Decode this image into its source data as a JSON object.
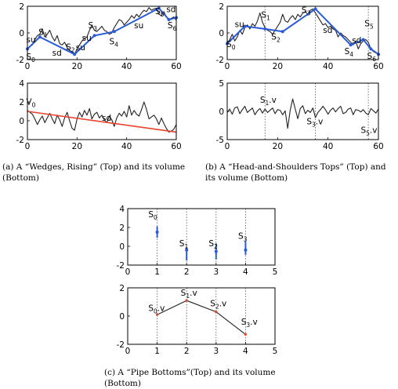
{
  "captions": {
    "a": "(a) A “Wedges, Rising” (Top) and its volume (Bottom)",
    "b": "(b) A “Head-and-Shoulders Tops” (Top) and its volume (Bottom)",
    "c": "(c) A “Pipe Bottoms”(Top) and its volume (Bottom)"
  },
  "colors": {
    "price": "#222222",
    "segment": "#2a5bd7",
    "trend": "#e8442a",
    "axis": "#000000"
  },
  "chart_data": [
    {
      "id": "a-top",
      "type": "line",
      "title": "",
      "xlabel": "",
      "ylabel": "",
      "xlim": [
        0,
        60
      ],
      "ylim": [
        -2,
        2
      ],
      "xticks": [
        0,
        20,
        40,
        60
      ],
      "yticks": [
        -2,
        0,
        2
      ],
      "series": [
        {
          "role": "price",
          "y": [
            -1.2,
            -1.0,
            -0.9,
            -0.5,
            -0.2,
            -0.1,
            0.3,
            -0.3,
            -0.1,
            0.2,
            -0.3,
            -0.6,
            -0.2,
            -0.8,
            -0.9,
            -0.7,
            -1.1,
            -1.3,
            -1.4,
            -1.6,
            -1.2,
            -0.9,
            -0.6,
            -0.4,
            -0.3,
            0.2,
            0.6,
            0.2,
            0.1,
            0.3,
            0.5,
            0.2,
            0.1,
            -0.1,
            0.0,
            0.4,
            0.7,
            1.0,
            0.9,
            0.6,
            0.8,
            1.0,
            1.3,
            1.1,
            1.4,
            1.2,
            1.5,
            1.7,
            1.6,
            1.9,
            1.7,
            1.8,
            1.85,
            1.4,
            1.3,
            1.6,
            1.2,
            1.0,
            1.1,
            1.2,
            0.95
          ]
        },
        {
          "role": "segment",
          "x": [
            0,
            5,
            19,
            27,
            35,
            53,
            57,
            60
          ],
          "y": [
            -1.2,
            -0.3,
            -1.6,
            -0.2,
            0.1,
            1.85,
            1.0,
            1.15
          ]
        }
      ],
      "annotations": [
        {
          "text": "su",
          "x": -0.5,
          "y": -0.7
        },
        {
          "text": "S",
          "sub": "1",
          "x": 4.5,
          "y": -0.15
        },
        {
          "text": "S",
          "sub": "0",
          "x": -0.5,
          "y": -2.0
        },
        {
          "text": "sd",
          "x": 10,
          "y": -1.7
        },
        {
          "text": "S",
          "sub": "2",
          "x": 15.5,
          "y": -1.25
        },
        {
          "text": "su",
          "x": 22,
          "y": -0.6
        },
        {
          "text": "su",
          "x": 19.5,
          "y": -1.3
        },
        {
          "text": "S",
          "sub": "3",
          "x": 24.5,
          "y": 0.35
        },
        {
          "text": "S",
          "sub": "4",
          "x": 33,
          "y": -0.85
        },
        {
          "text": "su",
          "x": 43,
          "y": 0.35
        },
        {
          "text": "S",
          "sub": "5",
          "x": 51.5,
          "y": 1.4
        },
        {
          "text": "sd",
          "x": 56,
          "y": 1.55
        },
        {
          "text": "S",
          "sub": "6",
          "x": 56.5,
          "y": 0.35
        }
      ]
    },
    {
      "id": "a-bottom",
      "type": "line",
      "title": "",
      "xlabel": "",
      "ylabel": "",
      "xlim": [
        0,
        60
      ],
      "ylim": [
        -2,
        4
      ],
      "xticks": [
        0,
        20,
        40,
        60
      ],
      "yticks": [
        -2,
        0,
        2,
        4
      ],
      "series": [
        {
          "role": "price",
          "y": [
            1.1,
            0.9,
            0.7,
            0.2,
            -0.4,
            0.1,
            0.5,
            -0.2,
            0.3,
            0.8,
            0.2,
            -0.3,
            0.6,
            0.1,
            -0.6,
            0.3,
            0.9,
            0.0,
            -0.8,
            -1.0,
            0.2,
            0.9,
            0.4,
            1.1,
            0.6,
            1.3,
            0.2,
            0.7,
            0.9,
            0.3,
            0.6,
            0.1,
            -0.2,
            0.5,
            0.1,
            -0.6,
            0.3,
            0.8,
            0.5,
            1.0,
            0.4,
            1.6,
            0.6,
            1.1,
            0.7,
            0.5,
            1.2,
            2.0,
            1.2,
            0.2,
            0.4,
            0.6,
            0.2,
            -0.4,
            0.3,
            -0.3,
            -0.8,
            -1.2,
            -1.1,
            -0.9,
            -0.4
          ]
        },
        {
          "role": "trend",
          "x": [
            0,
            60
          ],
          "y": [
            1.0,
            -1.2
          ]
        }
      ],
      "annotations": [
        {
          "text": "V",
          "sub": "0",
          "x": -0.5,
          "y": 1.7
        },
        {
          "text": "sd",
          "x": 30,
          "y": 0.0
        }
      ]
    },
    {
      "id": "b-top",
      "type": "line",
      "title": "",
      "xlabel": "",
      "ylabel": "",
      "xlim": [
        0,
        60
      ],
      "ylim": [
        -2,
        2
      ],
      "xticks": [
        0,
        20,
        40,
        60
      ],
      "yticks": [
        -2,
        0,
        2
      ],
      "series": [
        {
          "role": "price",
          "y": [
            -0.8,
            -0.5,
            -0.1,
            -0.6,
            -0.3,
            0.2,
            -0.1,
            0.4,
            0.6,
            0.3,
            0.7,
            0.5,
            0.9,
            1.5,
            0.8,
            0.4,
            0.2,
            0.1,
            -0.1,
            0.2,
            0.5,
            0.8,
            1.4,
            0.9,
            0.8,
            1.1,
            1.3,
            1.0,
            1.4,
            1.2,
            1.5,
            1.6,
            1.4,
            1.7,
            1.8,
            1.5,
            1.2,
            0.9,
            0.6,
            0.7,
            0.4,
            0.5,
            0.3,
            0.2,
            -0.3,
            0.0,
            -0.2,
            -0.3,
            -0.5,
            -0.7,
            -0.9,
            -0.6,
            -1.2,
            -0.8,
            -0.6,
            -0.5,
            -0.7,
            -1.2,
            -1.4,
            -1.5,
            -1.6
          ]
        },
        {
          "role": "segment",
          "x": [
            0,
            7,
            15,
            22,
            35,
            49,
            54,
            57,
            60
          ],
          "y": [
            -0.8,
            0.5,
            0.3,
            0.1,
            1.8,
            -0.9,
            -0.5,
            -1.2,
            -1.6
          ]
        }
      ],
      "guides": [
        15,
        35,
        56
      ],
      "annotations": [
        {
          "text": "su",
          "x": 3,
          "y": 0.45
        },
        {
          "text": "S",
          "sub": "0",
          "x": -0.3,
          "y": -1.05
        },
        {
          "text": "S",
          "sub": "1",
          "x": 13.5,
          "y": 1.15
        },
        {
          "text": "S",
          "sub": "2",
          "x": 17.5,
          "y": -0.5
        },
        {
          "text": "S",
          "sub": "3",
          "x": 29.5,
          "y": 1.5
        },
        {
          "text": "sd",
          "x": 38,
          "y": 0.0
        },
        {
          "text": "sd",
          "x": 49.5,
          "y": -0.75
        },
        {
          "text": "S",
          "sub": "4",
          "x": 46.5,
          "y": -1.6
        },
        {
          "text": "S",
          "sub": "5",
          "x": 54.5,
          "y": 0.5
        },
        {
          "text": "S",
          "sub": "6",
          "x": 55.5,
          "y": -1.95
        }
      ]
    },
    {
      "id": "b-bottom",
      "type": "line",
      "title": "",
      "xlabel": "",
      "ylabel": "",
      "xlim": [
        0,
        60
      ],
      "ylim": [
        -5,
        5
      ],
      "xticks": [
        0,
        20,
        40,
        60
      ],
      "yticks": [
        -5,
        0,
        5
      ],
      "series": [
        {
          "role": "price",
          "y": [
            -0.2,
            0.4,
            -0.5,
            0.6,
            0.8,
            -0.4,
            0.3,
            0.9,
            -0.2,
            0.2,
            0.6,
            -0.6,
            0.1,
            0.5,
            -0.3,
            0.4,
            -0.2,
            0.2,
            0.6,
            -0.4,
            0.3,
            0.2,
            -0.6,
            0.1,
            -3.0,
            0.2,
            2.2,
            0.4,
            -1.3,
            0.5,
            1.0,
            -0.4,
            0.2,
            -0.2,
            0.6,
            -1.1,
            -0.2,
            0.3,
            0.9,
            0.3,
            -0.5,
            0.2,
            0.6,
            -0.1,
            0.5,
            0.9,
            -0.4,
            -0.2,
            0.4,
            0.6,
            -0.6,
            0.3,
            0.2,
            -0.1,
            0.3,
            -0.3,
            -0.6,
            0.5,
            0.1,
            -0.3,
            0.4
          ]
        }
      ],
      "guides": [
        15,
        35,
        56
      ],
      "annotations": [
        {
          "text": "S",
          "sub": "1",
          "suffix": ".v",
          "x": 13,
          "y": 1.5
        },
        {
          "text": "S",
          "sub": "3",
          "suffix": ".v",
          "x": 31.5,
          "y": -2.3
        },
        {
          "text": "S",
          "sub": "5",
          "suffix": ".v",
          "x": 53,
          "y": -3.8
        }
      ]
    },
    {
      "id": "c-top",
      "type": "scatter",
      "title": "",
      "xlabel": "",
      "ylabel": "",
      "xlim": [
        0,
        5
      ],
      "ylim": [
        -2,
        4
      ],
      "xticks": [
        0,
        1,
        2,
        3,
        4,
        5
      ],
      "yticks": [
        -2,
        0,
        2,
        4
      ],
      "guides": [
        1,
        2,
        3,
        4
      ],
      "points": [
        {
          "x": 1,
          "y": 1.5,
          "lo": 0.9,
          "hi": 2.1
        },
        {
          "x": 2,
          "y": -0.4,
          "lo": -1.5,
          "hi": -0.1
        },
        {
          "x": 3,
          "y": -0.55,
          "lo": -1.4,
          "hi": 0.3
        },
        {
          "x": 4,
          "y": -0.4,
          "lo": -0.9,
          "hi": 0.6
        }
      ],
      "annotations": [
        {
          "text": "S",
          "sub": "0",
          "x": 0.7,
          "y": 3.1
        },
        {
          "text": "S",
          "sub": "1",
          "x": 1.75,
          "y": 0.0
        },
        {
          "text": "S",
          "sub": "2",
          "x": 2.75,
          "y": 0.0
        },
        {
          "text": "S",
          "sub": "3",
          "x": 3.75,
          "y": 0.8
        }
      ]
    },
    {
      "id": "c-bottom",
      "type": "line",
      "title": "",
      "xlabel": "",
      "ylabel": "",
      "xlim": [
        0,
        5
      ],
      "ylim": [
        -2,
        2
      ],
      "xticks": [
        0,
        1,
        2,
        3,
        4,
        5
      ],
      "yticks": [
        -2,
        0,
        2
      ],
      "guides": [
        1,
        2,
        3,
        4
      ],
      "series": [
        {
          "role": "price",
          "x": [
            1,
            2,
            3,
            4
          ],
          "y": [
            0.1,
            1.1,
            0.3,
            -1.3
          ]
        }
      ],
      "annotations": [
        {
          "text": "S",
          "sub": "0",
          "suffix": ".v",
          "x": 0.7,
          "y": 0.35
        },
        {
          "text": "S",
          "sub": "1",
          "suffix": ".v",
          "x": 1.8,
          "y": 1.45
        },
        {
          "text": "S",
          "sub": "2",
          "suffix": ".v",
          "x": 2.8,
          "y": 0.7
        },
        {
          "text": "S",
          "sub": "3",
          "suffix": ".v",
          "x": 3.85,
          "y": -0.6
        }
      ]
    }
  ]
}
